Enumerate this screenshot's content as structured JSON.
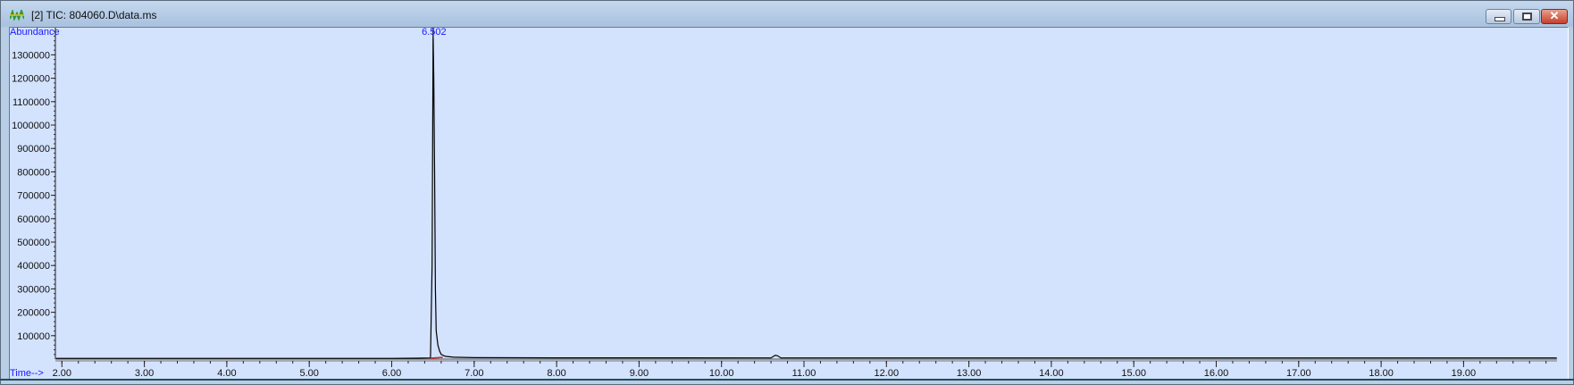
{
  "window": {
    "title": "[2] TIC: 804060.D\\data.ms",
    "icon": "chromatogram-app-icon",
    "controls": {
      "minimize": "minimize",
      "maximize": "maximize",
      "close": "close"
    }
  },
  "colors": {
    "plot_background": "#d3e2fd",
    "trace": "#000000",
    "label_blue": "#1a1aff",
    "integration_baseline": "#e02020"
  },
  "chart_data": {
    "type": "line",
    "ylabel": "Abundance",
    "xlabel": "Time-->",
    "xlim": [
      1.93,
      20.13
    ],
    "ylim": [
      0,
      1410000
    ],
    "x_ticks": [
      "2.00",
      "3.00",
      "4.00",
      "5.00",
      "6.00",
      "7.00",
      "8.00",
      "9.00",
      "10.00",
      "11.00",
      "12.00",
      "13.00",
      "14.00",
      "15.00",
      "16.00",
      "17.00",
      "18.00",
      "19.00"
    ],
    "y_ticks": [
      "100000",
      "200000",
      "300000",
      "400000",
      "500000",
      "600000",
      "700000",
      "800000",
      "900000",
      "1000000",
      "1100000",
      "1200000",
      "1300000"
    ],
    "grid": false,
    "peak_labels": [
      {
        "x": 6.502,
        "label": "6.502"
      }
    ],
    "series": [
      {
        "x": [
          1.93,
          6.0,
          6.3,
          6.47,
          6.49,
          6.5,
          6.502,
          6.51,
          6.52,
          6.53,
          6.54,
          6.56,
          6.58,
          6.6,
          6.65,
          6.75,
          7.0,
          8.0,
          9.0,
          10.6,
          10.65,
          10.68,
          10.72,
          11.0,
          15.0,
          20.13
        ],
        "y": [
          3000,
          3000,
          4000,
          5000,
          400000,
          1250000,
          1410000,
          1200000,
          800000,
          300000,
          120000,
          60000,
          35000,
          20000,
          12000,
          8000,
          6000,
          5500,
          5500,
          5000,
          16000,
          14000,
          5000,
          5000,
          5000,
          5000
        ]
      }
    ]
  }
}
